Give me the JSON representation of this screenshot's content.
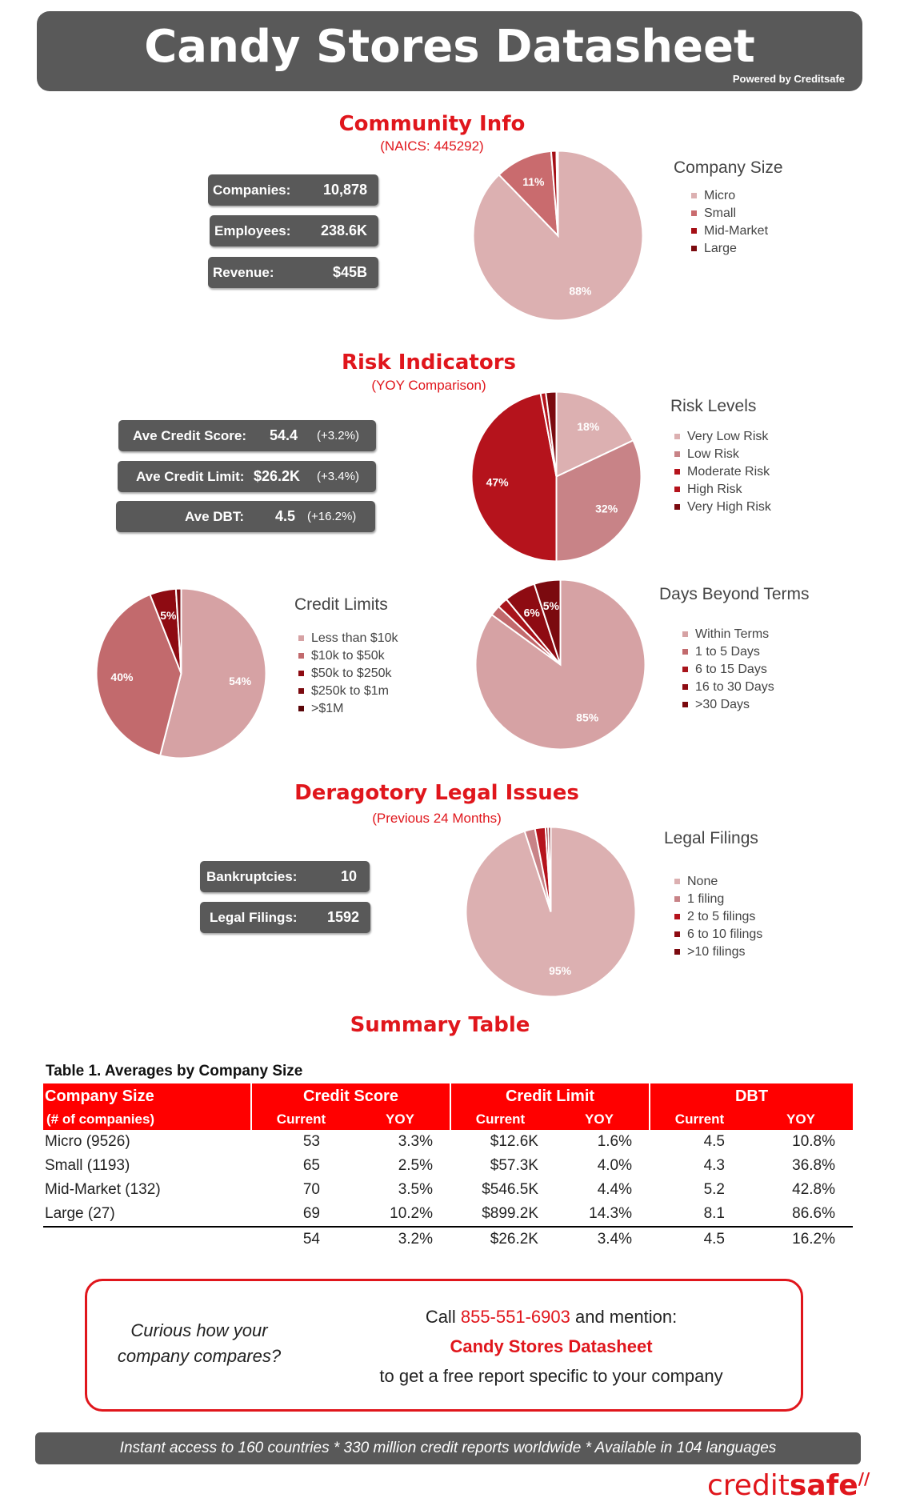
{
  "header": {
    "title": "Candy Stores Datasheet",
    "powered": "Powered by Creditsafe"
  },
  "community": {
    "title": "Community Info",
    "subtitle": "(NAICS: 445292)",
    "stats": [
      {
        "label": "Companies:",
        "value": "10,878"
      },
      {
        "label": "Employees:",
        "value": "238.6K"
      },
      {
        "label": "Revenue:",
        "value": "$45B"
      }
    ]
  },
  "risk": {
    "title": "Risk Indicators",
    "subtitle": "(YOY Comparison)",
    "stats": [
      {
        "label": "Ave Credit Score:",
        "value": "54.4",
        "yoy": "(+3.2%)"
      },
      {
        "label": "Ave Credit Limit:",
        "value": "$26.2K",
        "yoy": "(+3.4%)"
      },
      {
        "label": "Ave DBT:",
        "value": "4.5",
        "yoy": "(+16.2%)"
      }
    ]
  },
  "legal": {
    "title": "Deragotory Legal Issues",
    "subtitle": "(Previous 24 Months)",
    "stats": [
      {
        "label": "Bankruptcies:",
        "value": "10"
      },
      {
        "label": "Legal Filings:",
        "value": "1592"
      }
    ]
  },
  "chart_data": [
    {
      "id": "company-size",
      "type": "pie",
      "title": "Company Size",
      "categories": [
        "Micro",
        "Small",
        "Mid-Market",
        "Large"
      ],
      "values": [
        88,
        11,
        1,
        0.3
      ],
      "labels": [
        "88%",
        "11%",
        "",
        ""
      ],
      "colors": [
        "#dcb0b1",
        "#c96b6e",
        "#a50f16",
        "#7b0a0f"
      ],
      "legend": "right"
    },
    {
      "id": "risk-levels",
      "type": "pie",
      "title": "Risk Levels",
      "categories": [
        "Very Low Risk",
        "Low Risk",
        "Moderate Risk",
        "High Risk",
        "Very High Risk"
      ],
      "values": [
        18,
        32,
        47,
        1,
        2
      ],
      "labels": [
        "18%",
        "32%",
        "47%",
        "",
        ""
      ],
      "colors": [
        "#dcb0b1",
        "#c88387",
        "#b5131c",
        "#b5131c",
        "#7b0a0f"
      ],
      "legend": "right"
    },
    {
      "id": "credit-limits",
      "type": "pie",
      "title": "Credit Limits",
      "categories": [
        "Less than $10k",
        "$10k to $50k",
        "$50k to $250k",
        "$250k to $1m",
        ">$1M"
      ],
      "values": [
        54,
        40,
        5,
        1,
        0
      ],
      "labels": [
        "54%",
        "40%",
        "5%",
        "",
        ""
      ],
      "colors": [
        "#d6a2a4",
        "#c26a6d",
        "#8e0b12",
        "#7b0a0f",
        "#5a0508"
      ],
      "legend": "right"
    },
    {
      "id": "days-beyond-terms",
      "type": "pie",
      "title": "Days Beyond Terms",
      "categories": [
        "Within Terms",
        "1 to 5 Days",
        "6 to 15 Days",
        "16 to 30 Days",
        ">30 Days"
      ],
      "values": [
        85,
        2,
        2,
        6,
        5
      ],
      "labels": [
        "85%",
        "",
        "",
        "6%",
        "5%"
      ],
      "colors": [
        "#d6a2a4",
        "#c26a6d",
        "#a8141b",
        "#8e0b12",
        "#7b0a0f"
      ],
      "legend": "right"
    },
    {
      "id": "legal-filings",
      "type": "pie",
      "title": "Legal Filings",
      "categories": [
        "None",
        "1 filing",
        "2 to 5 filings",
        "6 to 10 filings",
        ">10 filings"
      ],
      "values": [
        95,
        2,
        2,
        0.5,
        0.5
      ],
      "labels": [
        "95%",
        "",
        "",
        "",
        ""
      ],
      "colors": [
        "#dcb0b1",
        "#c88387",
        "#b5131c",
        "#8e0b12",
        "#7b0a0f"
      ],
      "legend": "right"
    }
  ],
  "summary": {
    "title": "Summary Table",
    "caption": "Table 1. Averages by Company Size",
    "headers": {
      "size": "Company Size",
      "size_sub": "(# of companies)",
      "credit_score": "Credit Score",
      "credit_limit": "Credit Limit",
      "dbt": "DBT",
      "current": "Current",
      "yoy": "YOY"
    },
    "rows": [
      {
        "name": "Micro (9526)",
        "cs": "53",
        "cs_yoy": "3.3%",
        "cl": "$12.6K",
        "cl_yoy": "1.6%",
        "dbt": "4.5",
        "dbt_yoy": "10.8%"
      },
      {
        "name": "Small (1193)",
        "cs": "65",
        "cs_yoy": "2.5%",
        "cl": "$57.3K",
        "cl_yoy": "4.0%",
        "dbt": "4.3",
        "dbt_yoy": "36.8%"
      },
      {
        "name": "Mid-Market (132)",
        "cs": "70",
        "cs_yoy": "3.5%",
        "cl": "$546.5K",
        "cl_yoy": "4.4%",
        "dbt": "5.2",
        "dbt_yoy": "42.8%"
      },
      {
        "name": "Large (27)",
        "cs": "69",
        "cs_yoy": "10.2%",
        "cl": "$899.2K",
        "cl_yoy": "14.3%",
        "dbt": "8.1",
        "dbt_yoy": "86.6%"
      }
    ],
    "total": {
      "cs": "54",
      "cs_yoy": "3.2%",
      "cl": "$26.2K",
      "cl_yoy": "3.4%",
      "dbt": "4.5",
      "dbt_yoy": "16.2%"
    }
  },
  "callout": {
    "question_1": "Curious how your",
    "question_2": "company compares?",
    "call": "Call",
    "phone": "855-551-6903",
    "mention": "and mention:",
    "datasheet": "Candy Stores Datasheet",
    "report": "to get a free report specific to your company"
  },
  "footer": {
    "text": "Instant access to 160 countries * 330 million credit reports worldwide * Available in 104 languages"
  },
  "logo": {
    "text_a": "credit",
    "text_b": "safe"
  }
}
